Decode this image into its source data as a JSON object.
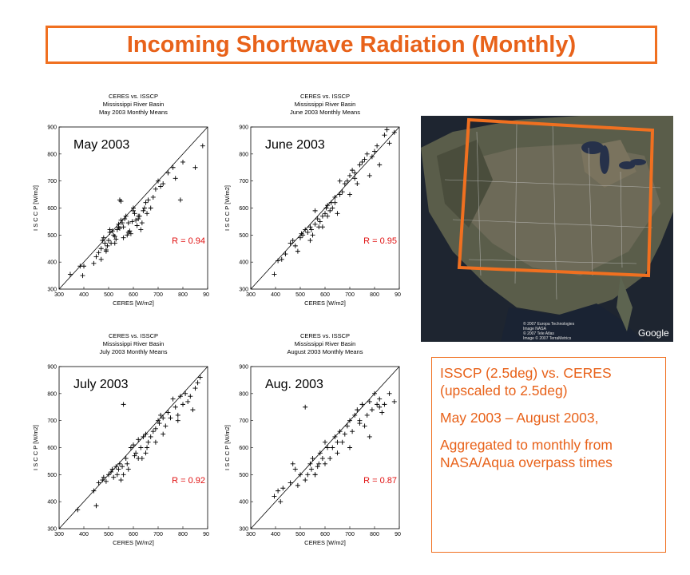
{
  "slide_title": "Incoming Shortwave Radiation (Monthly)",
  "chart_data": [
    {
      "type": "scatter",
      "title": "CERES vs. ISSCP",
      "subtitle": "Mississippi River Basin",
      "subtitle2": "May 2003 Monthly Means",
      "month_label": "May 2003",
      "annotation": "R = 0.94",
      "xlabel": "CERES [W/m2]",
      "ylabel": "I S C C P  [W/m2]",
      "xlim": [
        300,
        900
      ],
      "ylim": [
        300,
        900
      ],
      "ticks": [
        300,
        400,
        500,
        600,
        700,
        800,
        900
      ],
      "reference_line": "1:1",
      "x": [
        345,
        385,
        400,
        395,
        440,
        450,
        460,
        470,
        475,
        480,
        485,
        490,
        495,
        500,
        505,
        510,
        515,
        520,
        525,
        530,
        535,
        540,
        545,
        550,
        555,
        560,
        565,
        570,
        575,
        580,
        585,
        590,
        595,
        600,
        605,
        610,
        615,
        620,
        625,
        630,
        635,
        640,
        645,
        650,
        655,
        660,
        670,
        680,
        690,
        700,
        710,
        720,
        740,
        760,
        770,
        790,
        800,
        850,
        880,
        545,
        550,
        540,
        525,
        560,
        580,
        600,
        620,
        470,
        490,
        505
      ],
      "y": [
        355,
        385,
        385,
        350,
        395,
        420,
        435,
        450,
        480,
        490,
        470,
        445,
        460,
        480,
        510,
        470,
        515,
        500,
        495,
        485,
        520,
        540,
        525,
        555,
        545,
        530,
        560,
        570,
        500,
        545,
        515,
        505,
        550,
        600,
        580,
        555,
        535,
        560,
        570,
        520,
        545,
        590,
        600,
        620,
        580,
        630,
        600,
        640,
        670,
        700,
        680,
        690,
        730,
        750,
        710,
        630,
        770,
        750,
        830,
        630,
        625,
        530,
        470,
        490,
        510,
        590,
        570,
        410,
        440,
        520
      ]
    },
    {
      "type": "scatter",
      "title": "CERES vs. ISSCP",
      "subtitle": "Mississippi River Basin",
      "subtitle2": "June 2003 Monthly Means",
      "month_label": "June 2003",
      "annotation": "R = 0.95",
      "xlabel": "CERES [W/m2]",
      "ylabel": "I S C C P  [W/m2]",
      "xlim": [
        300,
        900
      ],
      "ylim": [
        300,
        900
      ],
      "ticks": [
        300,
        400,
        500,
        600,
        700,
        800,
        900
      ],
      "reference_line": "1:1",
      "x": [
        395,
        410,
        425,
        440,
        460,
        470,
        480,
        490,
        500,
        505,
        510,
        520,
        530,
        540,
        545,
        550,
        560,
        570,
        575,
        580,
        590,
        600,
        605,
        610,
        620,
        625,
        630,
        640,
        650,
        660,
        670,
        680,
        690,
        700,
        710,
        720,
        730,
        740,
        750,
        760,
        770,
        780,
        790,
        800,
        810,
        820,
        840,
        850,
        860,
        880,
        540,
        560,
        590,
        610,
        640,
        660,
        700,
        720
      ],
      "y": [
        355,
        405,
        410,
        430,
        470,
        480,
        460,
        440,
        490,
        505,
        500,
        520,
        510,
        530,
        520,
        500,
        540,
        560,
        530,
        550,
        570,
        580,
        600,
        610,
        590,
        620,
        600,
        640,
        580,
        650,
        660,
        690,
        700,
        720,
        740,
        710,
        690,
        760,
        770,
        780,
        800,
        720,
        790,
        810,
        830,
        760,
        870,
        890,
        840,
        880,
        480,
        590,
        530,
        570,
        620,
        700,
        650,
        730
      ]
    },
    {
      "type": "scatter",
      "title": "CERES vs. ISSCP",
      "subtitle": "Mississippi River Basin",
      "subtitle2": "July 2003 Monthly Means",
      "month_label": "July 2003",
      "annotation": "R = 0.92",
      "xlabel": "CERES [W/m2]",
      "ylabel": "I S C C P  [W/m2]",
      "xlim": [
        300,
        900
      ],
      "ylim": [
        300,
        900
      ],
      "ticks": [
        300,
        400,
        500,
        600,
        700,
        800,
        900
      ],
      "reference_line": "1:1",
      "x": [
        375,
        440,
        450,
        460,
        475,
        480,
        490,
        500,
        510,
        515,
        520,
        530,
        535,
        540,
        545,
        550,
        555,
        560,
        570,
        575,
        580,
        590,
        600,
        605,
        610,
        620,
        630,
        635,
        640,
        650,
        655,
        660,
        670,
        680,
        690,
        700,
        705,
        710,
        720,
        730,
        740,
        750,
        760,
        770,
        780,
        790,
        800,
        810,
        820,
        830,
        840,
        850,
        860,
        870,
        560,
        650,
        690,
        720,
        780,
        620
      ],
      "y": [
        370,
        440,
        385,
        470,
        480,
        490,
        475,
        500,
        510,
        520,
        490,
        530,
        500,
        520,
        540,
        480,
        530,
        500,
        560,
        540,
        520,
        600,
        610,
        570,
        580,
        630,
        600,
        560,
        640,
        650,
        600,
        620,
        640,
        660,
        670,
        700,
        690,
        720,
        710,
        680,
        730,
        710,
        780,
        750,
        720,
        790,
        760,
        800,
        770,
        790,
        740,
        820,
        840,
        860,
        760,
        580,
        620,
        650,
        700,
        560
      ]
    },
    {
      "type": "scatter",
      "title": "CERES vs. ISSCP",
      "subtitle": "Mississippi River Basin",
      "subtitle2": "August 2003 Monthly Means",
      "month_label": "Aug. 2003",
      "annotation": "R = 0.87",
      "xlabel": "CERES [W/m2]",
      "ylabel": "I S C C P  [W/m2]",
      "xlim": [
        300,
        900
      ],
      "ylim": [
        300,
        900
      ],
      "ticks": [
        300,
        400,
        500,
        600,
        700,
        800,
        900
      ],
      "reference_line": "1:1",
      "x": [
        395,
        410,
        420,
        430,
        460,
        470,
        480,
        490,
        500,
        520,
        530,
        540,
        545,
        550,
        560,
        570,
        575,
        580,
        590,
        600,
        610,
        620,
        630,
        640,
        650,
        660,
        670,
        680,
        690,
        700,
        710,
        720,
        730,
        740,
        750,
        760,
        770,
        780,
        790,
        800,
        810,
        820,
        830,
        840,
        860,
        880,
        520,
        560,
        600,
        650,
        700,
        740,
        780,
        820
      ],
      "y": [
        420,
        440,
        400,
        450,
        470,
        540,
        520,
        460,
        500,
        480,
        500,
        540,
        520,
        560,
        500,
        530,
        540,
        580,
        560,
        620,
        600,
        560,
        600,
        640,
        580,
        660,
        620,
        650,
        680,
        700,
        660,
        720,
        740,
        690,
        760,
        680,
        720,
        770,
        740,
        800,
        760,
        780,
        730,
        760,
        800,
        770,
        750,
        500,
        540,
        620,
        600,
        700,
        640,
        750
      ]
    }
  ],
  "info": {
    "line1": "ISSCP (2.5deg) vs. CERES (upscaled to 2.5deg)",
    "line2": "May 2003 – August 2003,",
    "line3": "Aggregated to monthly from NASA/Aqua overpass times"
  },
  "map": {
    "credit": "© 2007 Europa Technologies\nImage NASA\n© 2007 Tele Atlas\nImage © 2007 TerraMetrics",
    "logo": "Google",
    "overlay_color": "#f07020"
  },
  "colors": {
    "accent": "#e8621a",
    "r_value": "#e01010"
  }
}
